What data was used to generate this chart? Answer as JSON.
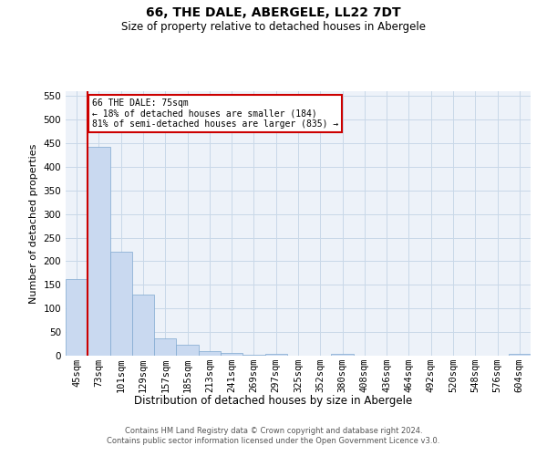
{
  "title1": "66, THE DALE, ABERGELE, LL22 7DT",
  "title2": "Size of property relative to detached houses in Abergele",
  "xlabel": "Distribution of detached houses by size in Abergele",
  "ylabel": "Number of detached properties",
  "categories": [
    "45sqm",
    "73sqm",
    "101sqm",
    "129sqm",
    "157sqm",
    "185sqm",
    "213sqm",
    "241sqm",
    "269sqm",
    "297sqm",
    "325sqm",
    "352sqm",
    "380sqm",
    "408sqm",
    "436sqm",
    "464sqm",
    "492sqm",
    "520sqm",
    "548sqm",
    "576sqm",
    "604sqm"
  ],
  "values": [
    163,
    443,
    221,
    129,
    37,
    24,
    10,
    5,
    2,
    4,
    0,
    0,
    4,
    0,
    0,
    0,
    0,
    0,
    0,
    0,
    4
  ],
  "bar_color": "#c9d9f0",
  "bar_edge_color": "#7fa8d0",
  "ylim": [
    0,
    560
  ],
  "yticks": [
    0,
    50,
    100,
    150,
    200,
    250,
    300,
    350,
    400,
    450,
    500,
    550
  ],
  "property_bin_index": 1,
  "property_label": "66 THE DALE: 75sqm",
  "annotation_line1": "← 18% of detached houses are smaller (184)",
  "annotation_line2": "81% of semi-detached houses are larger (835) →",
  "annotation_box_bg": "#ffffff",
  "annotation_box_edge": "#cc0000",
  "red_line_color": "#cc0000",
  "footer1": "Contains HM Land Registry data © Crown copyright and database right 2024.",
  "footer2": "Contains public sector information licensed under the Open Government Licence v3.0.",
  "grid_color": "#c8d8e8",
  "background_color": "#edf2f9"
}
